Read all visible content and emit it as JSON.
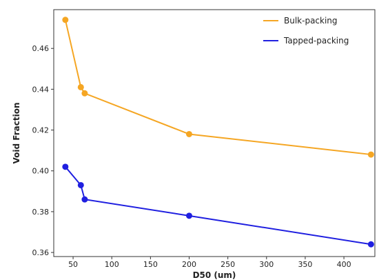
{
  "chart_data": {
    "type": "line",
    "title": "",
    "xlabel": "D50 (um)",
    "ylabel": "Void Fraction",
    "xlim": [
      25,
      440
    ],
    "ylim": [
      0.358,
      0.479
    ],
    "x_ticks": [
      50,
      100,
      150,
      200,
      250,
      300,
      350,
      400
    ],
    "y_ticks": [
      0.36,
      0.38,
      0.4,
      0.42,
      0.44,
      0.46
    ],
    "x_tick_labels": [
      "50",
      "100",
      "150",
      "200",
      "250",
      "300",
      "350",
      "400"
    ],
    "y_tick_labels": [
      "0.36",
      "0.38",
      "0.40",
      "0.42",
      "0.44",
      "0.46"
    ],
    "grid": false,
    "legend_position": "top-right",
    "series": [
      {
        "name": "Bulk-packing",
        "color": "#f5a623",
        "x": [
          40,
          60,
          65,
          200,
          435
        ],
        "y": [
          0.474,
          0.441,
          0.438,
          0.418,
          0.408
        ]
      },
      {
        "name": "Tapped-packing",
        "color": "#1f1fe0",
        "x": [
          40,
          60,
          65,
          200,
          435
        ],
        "y": [
          0.402,
          0.393,
          0.386,
          0.378,
          0.364
        ]
      }
    ]
  }
}
